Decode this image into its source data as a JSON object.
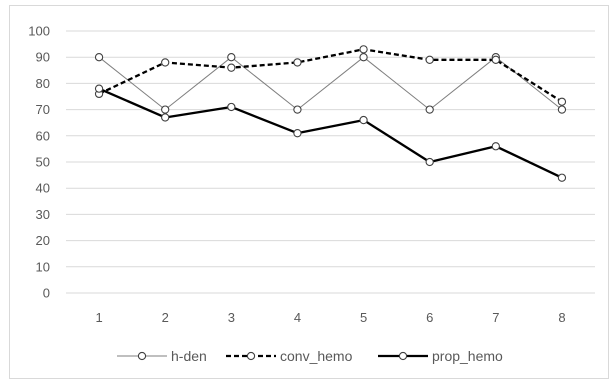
{
  "chart_data": {
    "type": "line",
    "x": [
      1,
      2,
      3,
      4,
      5,
      6,
      7,
      8
    ],
    "ylim": [
      0,
      100
    ],
    "ytick_step": 10,
    "grid": true,
    "legend_position": "bottom",
    "series": [
      {
        "name": "h-den",
        "values": [
          90,
          70,
          90,
          70,
          90,
          70,
          90,
          70
        ],
        "color": "#7f7f7f",
        "line_style": "solid-thin",
        "marker": "open-circle"
      },
      {
        "name": "conv_hemo",
        "values": [
          76,
          88,
          86,
          88,
          93,
          89,
          89,
          73
        ],
        "color": "#000000",
        "line_style": "dashed",
        "marker": "open-circle"
      },
      {
        "name": "prop_hemo",
        "values": [
          78,
          67,
          71,
          61,
          66,
          50,
          56,
          44
        ],
        "color": "#000000",
        "line_style": "solid-thick",
        "marker": "open-circle"
      }
    ]
  }
}
